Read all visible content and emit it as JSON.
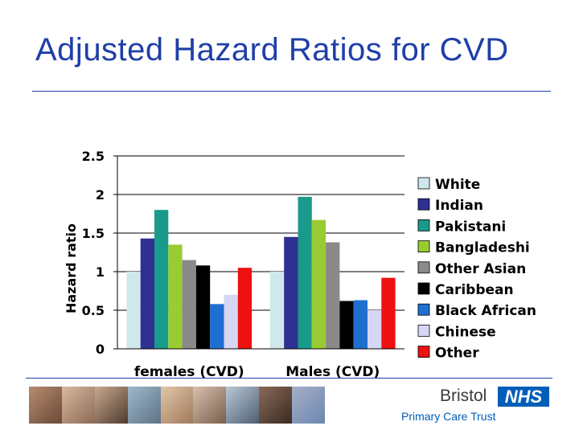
{
  "slide": {
    "title": "Adjusted Hazard Ratios for CVD"
  },
  "colors": {
    "title": "#1f3fa8",
    "rule": "#1f3fa8",
    "nhs_blue": "#005eb8"
  },
  "branding": {
    "bristol": "Bristol",
    "nhs": "NHS",
    "primary_care_trust": "Primary Care Trust"
  },
  "chart_data": {
    "type": "bar",
    "title": "",
    "xlabel": "",
    "ylabel": "Hazard ratio",
    "ylim": [
      0,
      2.5
    ],
    "yticks": [
      "0",
      "0.5",
      "1",
      "1.5",
      "2",
      "2.5"
    ],
    "ytick_values": [
      0,
      0.5,
      1,
      1.5,
      2,
      2.5
    ],
    "grid": true,
    "legend_position": "right",
    "categories": [
      "females (CVD)",
      "Males (CVD)"
    ],
    "series": [
      {
        "name": "White",
        "color": "#cfe8ec",
        "values": [
          1.0,
          1.0
        ]
      },
      {
        "name": "Indian",
        "color": "#2e3192",
        "values": [
          1.43,
          1.45
        ]
      },
      {
        "name": "Pakistani",
        "color": "#1a9a8a",
        "values": [
          1.8,
          1.97
        ]
      },
      {
        "name": "Bangladeshi",
        "color": "#99cc33",
        "values": [
          1.35,
          1.67
        ]
      },
      {
        "name": "Other Asian",
        "color": "#8a8a8a",
        "values": [
          1.15,
          1.38
        ]
      },
      {
        "name": "Caribbean",
        "color": "#000000",
        "values": [
          1.08,
          0.62
        ]
      },
      {
        "name": "Black African",
        "color": "#1f6fd1",
        "values": [
          0.58,
          0.63
        ]
      },
      {
        "name": "Chinese",
        "color": "#d6d6f5",
        "values": [
          0.7,
          0.5
        ]
      },
      {
        "name": "Other",
        "color": "#ee1111",
        "values": [
          1.05,
          0.92
        ]
      }
    ]
  }
}
